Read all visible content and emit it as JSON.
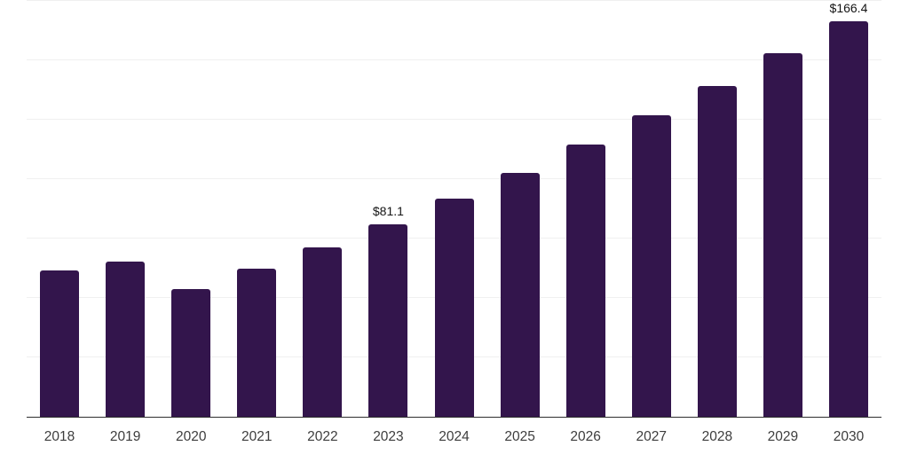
{
  "chart_data": {
    "type": "bar",
    "title": "",
    "xlabel": "",
    "ylabel": "",
    "categories": [
      "2018",
      "2019",
      "2020",
      "2021",
      "2022",
      "2023",
      "2024",
      "2025",
      "2026",
      "2027",
      "2028",
      "2029",
      "2030"
    ],
    "values": [
      61.5,
      65.3,
      53.8,
      62.4,
      71.2,
      81.1,
      91.9,
      102.7,
      114.7,
      126.9,
      139.3,
      153.0,
      166.4
    ],
    "value_labels": {
      "2023": "$81.1",
      "2030": "$166.4"
    },
    "ylim": [
      0,
      175
    ],
    "y_step": 25,
    "grid": true,
    "legend": false,
    "colors": {
      "bar": "#33154c",
      "gridline": "#f0f0f0",
      "axis_line": "#2e2e2e",
      "tick_label": "#3d3d3d",
      "value_label": "#141414"
    }
  }
}
